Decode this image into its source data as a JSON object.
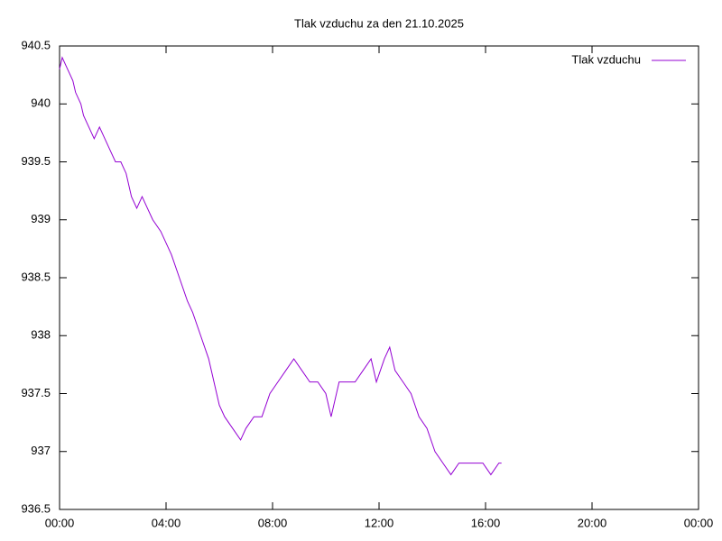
{
  "chart_data": {
    "type": "line",
    "title": "Tlak vzduchu za den 21.10.2025",
    "x": [
      0.0,
      0.1,
      0.3,
      0.5,
      0.6,
      0.8,
      0.9,
      1.1,
      1.3,
      1.5,
      1.7,
      1.9,
      2.1,
      2.3,
      2.5,
      2.7,
      2.9,
      3.1,
      3.3,
      3.5,
      3.8,
      4.0,
      4.2,
      4.5,
      4.8,
      5.0,
      5.3,
      5.6,
      5.8,
      6.0,
      6.2,
      6.5,
      6.8,
      7.0,
      7.3,
      7.6,
      7.9,
      8.2,
      8.5,
      8.8,
      9.1,
      9.4,
      9.7,
      10.0,
      10.2,
      10.5,
      10.8,
      11.1,
      11.4,
      11.7,
      11.9,
      12.2,
      12.4,
      12.6,
      12.9,
      13.2,
      13.5,
      13.8,
      14.1,
      14.4,
      14.7,
      15.0,
      15.3,
      15.6,
      15.9,
      16.2,
      16.5,
      16.6
    ],
    "series": [
      {
        "name": "Tlak vzduchu",
        "color": "#9400d3",
        "values": [
          940.3,
          940.4,
          940.3,
          940.2,
          940.1,
          940.0,
          939.9,
          939.8,
          939.7,
          939.8,
          939.7,
          939.6,
          939.5,
          939.5,
          939.4,
          939.2,
          939.1,
          939.2,
          939.1,
          939.0,
          938.9,
          938.8,
          938.7,
          938.5,
          938.3,
          938.2,
          938.0,
          937.8,
          937.6,
          937.4,
          937.3,
          937.2,
          937.1,
          937.2,
          937.3,
          937.3,
          937.5,
          937.6,
          937.7,
          937.8,
          937.7,
          937.6,
          937.6,
          937.5,
          937.3,
          937.6,
          937.6,
          937.6,
          937.7,
          937.8,
          937.6,
          937.8,
          937.9,
          937.7,
          937.6,
          937.5,
          937.3,
          937.2,
          937.0,
          936.9,
          936.8,
          936.9,
          936.9,
          936.9,
          936.9,
          936.8,
          936.9,
          936.9
        ]
      }
    ],
    "xlim": [
      0,
      24
    ],
    "xticks": [
      {
        "value": 0,
        "label": "00:00"
      },
      {
        "value": 4,
        "label": "04:00"
      },
      {
        "value": 8,
        "label": "08:00"
      },
      {
        "value": 12,
        "label": "12:00"
      },
      {
        "value": 16,
        "label": "16:00"
      },
      {
        "value": 20,
        "label": "20:00"
      },
      {
        "value": 24,
        "label": "00:00"
      }
    ],
    "ylim": [
      936.5,
      940.5
    ],
    "yticks": [
      936.5,
      937,
      937.5,
      938,
      938.5,
      939,
      939.5,
      940,
      940.5
    ],
    "legend": "top-right"
  }
}
